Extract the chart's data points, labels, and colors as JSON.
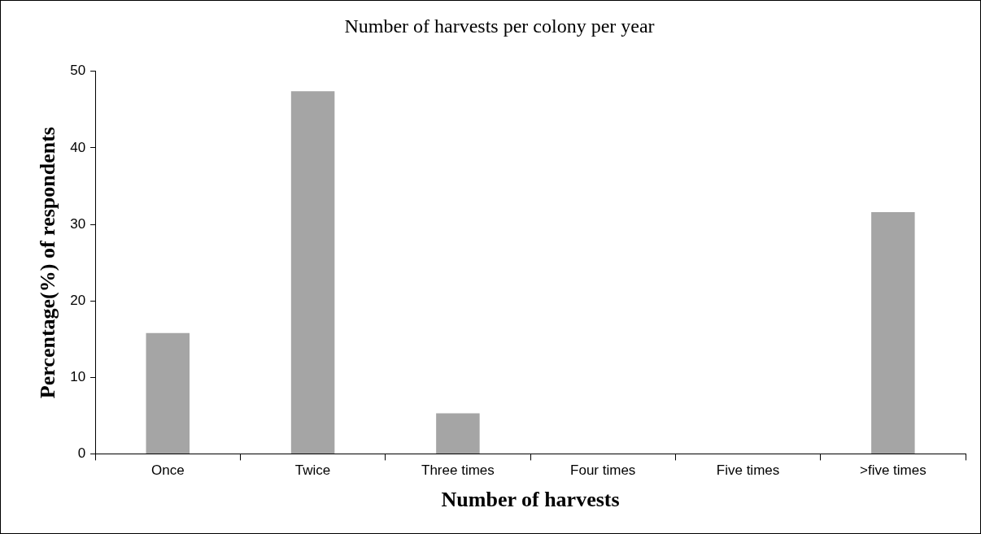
{
  "chart_data": {
    "type": "bar",
    "title": "Number of harvests per colony per year",
    "xlabel": "Number of harvests",
    "ylabel": "Percentage(%) of respondents",
    "categories": [
      "Once",
      "Twice",
      "Three times",
      "Four times",
      "Five times",
      ">five times"
    ],
    "values": [
      15.8,
      47.4,
      5.3,
      0,
      0,
      31.6
    ],
    "color": "#a5a5a5",
    "ylim": [
      0,
      50
    ],
    "yticks": [
      0,
      10,
      20,
      30,
      40,
      50
    ],
    "grid": false,
    "legend": false
  }
}
